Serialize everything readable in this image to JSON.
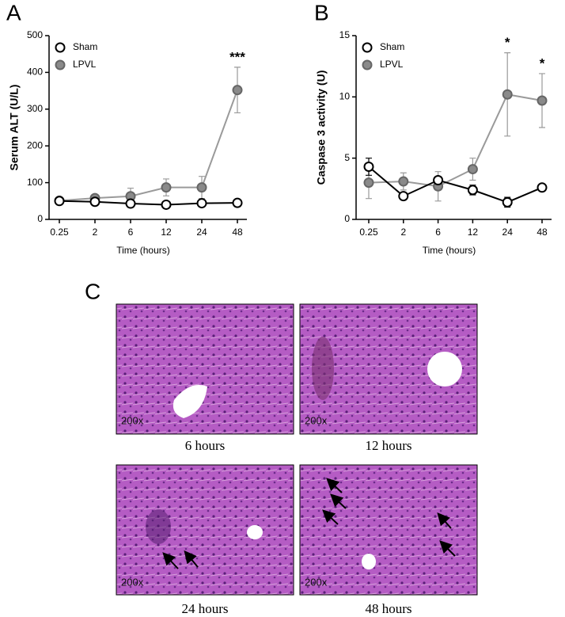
{
  "panels": [
    "A",
    "B",
    "C"
  ],
  "chart_data": [
    {
      "type": "line",
      "y_label": "Serum ALT (U/L)",
      "x_label": "Time (hours)",
      "categories": [
        "0.25",
        "2",
        "6",
        "12",
        "24",
        "48"
      ],
      "ylim": [
        0,
        500
      ],
      "yticks": [
        0,
        100,
        200,
        300,
        400,
        500
      ],
      "series": [
        {
          "name": "Sham",
          "color": "#000000",
          "marker_fill": "#ffffff",
          "values": [
            50,
            48,
            43,
            40,
            44,
            45
          ],
          "errors": [
            3,
            3,
            8,
            3,
            3,
            3
          ]
        },
        {
          "name": "LPVL",
          "color": "#9a9a9a",
          "marker_fill": "#8a8a8a",
          "values": [
            51,
            58,
            63,
            87,
            87,
            352
          ],
          "errors": [
            4,
            5,
            22,
            23,
            30,
            62
          ]
        }
      ],
      "annotations": [
        {
          "text": "***",
          "category": "48",
          "series": "LPVL"
        }
      ]
    },
    {
      "type": "line",
      "y_label": "Caspase 3 activity (U)",
      "x_label": "Time (hours)",
      "categories": [
        "0.25",
        "2",
        "6",
        "12",
        "24",
        "48"
      ],
      "ylim": [
        0,
        15
      ],
      "yticks": [
        0,
        5,
        10,
        15
      ],
      "series": [
        {
          "name": "Sham",
          "color": "#000000",
          "marker_fill": "#ffffff",
          "values": [
            4.3,
            1.9,
            3.2,
            2.4,
            1.4,
            2.6
          ],
          "errors": [
            0.7,
            0.2,
            0.3,
            0.4,
            0.4,
            0.1
          ]
        },
        {
          "name": "LPVL",
          "color": "#9a9a9a",
          "marker_fill": "#8a8a8a",
          "values": [
            3.0,
            3.1,
            2.7,
            4.1,
            10.2,
            9.7
          ],
          "errors": [
            1.3,
            0.7,
            1.2,
            0.9,
            3.4,
            2.2
          ]
        }
      ],
      "annotations": [
        {
          "text": "*",
          "category": "24",
          "series": "LPVL"
        },
        {
          "text": "*",
          "category": "48",
          "series": "LPVL"
        }
      ]
    }
  ],
  "images": [
    {
      "caption": "6 hours",
      "magnification": "200x"
    },
    {
      "caption": "12 hours",
      "magnification": "200x"
    },
    {
      "caption": "24 hours",
      "magnification": "200x"
    },
    {
      "caption": "48 hours",
      "magnification": "200x"
    }
  ]
}
